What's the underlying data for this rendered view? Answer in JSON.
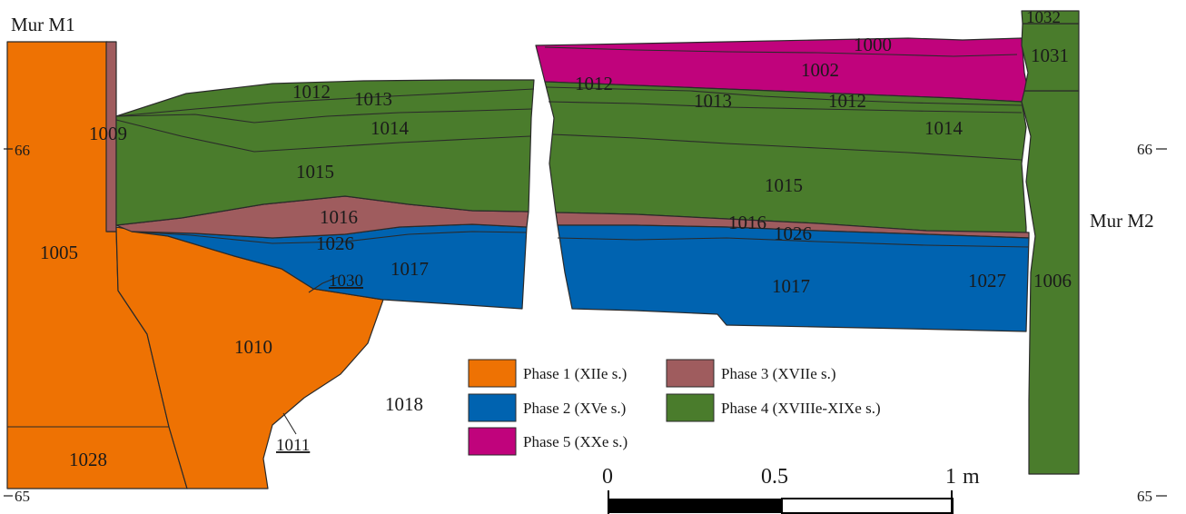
{
  "figure": {
    "walls": {
      "left": "Mur M1",
      "right": "Mur M2"
    },
    "elevations": {
      "left_66": "66",
      "left_65": "65",
      "right_66": "66",
      "right_65": "65"
    },
    "units": {
      "u1000": "1000",
      "u1002": "1002",
      "u1005": "1005",
      "u1006": "1006",
      "u1009": "1009",
      "u1010": "1010",
      "u1011": "1011",
      "u1012a": "1012",
      "u1012b": "1012",
      "u1012c": "1012",
      "u1013a": "1013",
      "u1013b": "1013",
      "u1014a": "1014",
      "u1014b": "1014",
      "u1015a": "1015",
      "u1015b": "1015",
      "u1016a": "1016",
      "u1016b": "1016",
      "u1017a": "1017",
      "u1017b": "1017",
      "u1018": "1018",
      "u1026a": "1026",
      "u1026b": "1026",
      "u1027": "1027",
      "u1028": "1028",
      "u1030": "1030",
      "u1031": "1031",
      "u1032": "1032"
    },
    "legend": [
      {
        "label": "Phase 1 (XIIe s.)",
        "color": "#ee7203"
      },
      {
        "label": "Phase 2 (XVe s.)",
        "color": "#0063b0"
      },
      {
        "label": "Phase 3 (XVIIe s.)",
        "color": "#9f5c5e"
      },
      {
        "label": "Phase 4 (XVIIIe-XIXe s.)",
        "color": "#4a7c2c"
      },
      {
        "label": "Phase 5 (XXe s.)",
        "color": "#c0037c"
      }
    ],
    "scale": {
      "t0": "0",
      "t05": "0.5",
      "t1": "1",
      "unit": "m"
    }
  }
}
